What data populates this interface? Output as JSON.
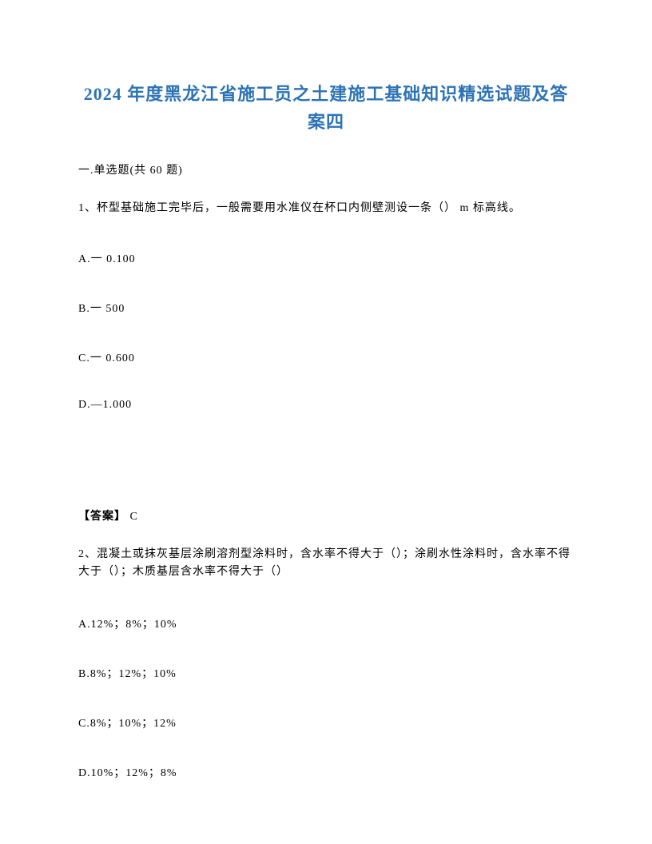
{
  "title": "2024 年度黑龙江省施工员之土建施工基础知识精选试题及答案四",
  "sectionHeader": "一.单选题(共 60 题)",
  "question1": {
    "text": "1、杯型基础施工完毕后，一般需要用水准仪在杯口内侧壁测设一条（） m 标高线。",
    "optionA": "A.一 0.100",
    "optionB": "B.一 500",
    "optionC": "C.一 0.600",
    "optionD": "D.—1.000",
    "answerLabel": "【答案】",
    "answerValue": " C"
  },
  "question2": {
    "text": "2、混凝土或抹灰基层涂刷溶剂型涂料时，含水率不得大于（）；涂刷水性涂料时，含水率不得大于（）；木质基层含水率不得大于（）",
    "optionA": "A.12%；8%；10%",
    "optionB": "B.8%；12%；10%",
    "optionC": "C.8%；10%；12%",
    "optionD": "D.10%；12%；8%"
  }
}
